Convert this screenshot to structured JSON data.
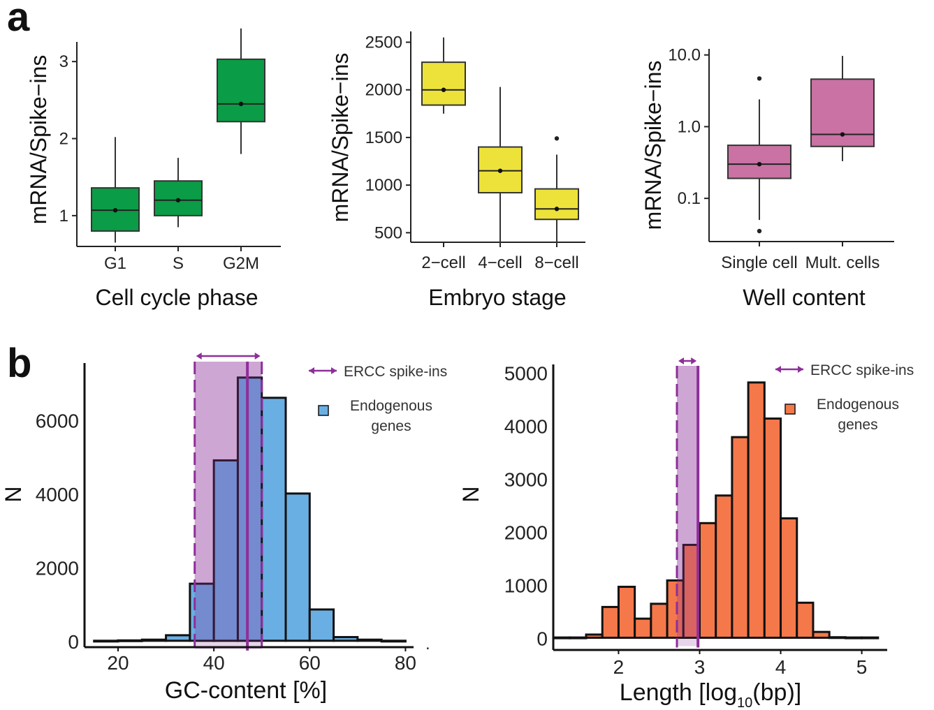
{
  "panels": {
    "a": "a",
    "b": "b"
  },
  "colors": {
    "green": "#0a9c46",
    "yellow": "#ede23a",
    "pink": "#c972a3",
    "blue": "#6aafe3",
    "orange": "#f5784a",
    "purple": "#8e2f99",
    "shade": "#e6d4ea"
  },
  "chart_data": [
    {
      "type": "box",
      "id": "a1",
      "ylabel": "mRNA/Spike−ins",
      "xlabel": "Cell cycle phase",
      "categories": [
        "G1",
        "S",
        "G2M"
      ],
      "ylim": [
        0.6,
        3.5
      ],
      "yticks": [
        1,
        2,
        3
      ],
      "yticklabels": [
        "1",
        "2",
        "3"
      ],
      "boxes": [
        {
          "min": 0.65,
          "q1": 0.8,
          "median": 1.07,
          "q3": 1.36,
          "max": 2.02,
          "mean": 1.07,
          "outliers": []
        },
        {
          "min": 0.85,
          "q1": 1.0,
          "median": 1.2,
          "q3": 1.45,
          "max": 1.75,
          "mean": 1.2,
          "outliers": []
        },
        {
          "min": 1.8,
          "q1": 2.22,
          "median": 2.45,
          "q3": 3.03,
          "max": 3.43,
          "mean": 2.45,
          "outliers": []
        }
      ]
    },
    {
      "type": "box",
      "id": "a2",
      "ylabel": "mRNA/Spike−ins",
      "xlabel": "Embryo stage",
      "categories": [
        "2−cell",
        "4−cell",
        "8−cell"
      ],
      "ylim": [
        400,
        2650
      ],
      "yticks": [
        500,
        1000,
        1500,
        2000,
        2500
      ],
      "yticklabels": [
        "500",
        "1000",
        "1500",
        "2000",
        "2500"
      ],
      "boxes": [
        {
          "min": 1750,
          "q1": 1840,
          "median": 2000,
          "q3": 2290,
          "max": 2550,
          "mean": 2000,
          "outliers": []
        },
        {
          "min": 380,
          "q1": 920,
          "median": 1150,
          "q3": 1400,
          "max": 2030,
          "mean": 1150,
          "outliers": []
        },
        {
          "min": 380,
          "q1": 640,
          "median": 750,
          "q3": 960,
          "max": 1320,
          "mean": 750,
          "outliers": [
            1490
          ]
        }
      ]
    },
    {
      "type": "box",
      "id": "a3",
      "ylabel": "mRNA/Spike−ins",
      "xlabel": "Well content",
      "categories": [
        "Single cell",
        "Mult. cells"
      ],
      "scale": "log",
      "ylim": [
        0.025,
        13
      ],
      "yticks": [
        0.1,
        1.0,
        10.0
      ],
      "yticklabels": [
        "0.1",
        "1.0",
        "10.0"
      ],
      "boxes": [
        {
          "min": 0.05,
          "q1": 0.19,
          "median": 0.3,
          "q3": 0.55,
          "max": 2.4,
          "mean": 0.3,
          "outliers": [
            0.035,
            4.7
          ]
        },
        {
          "min": 0.33,
          "q1": 0.53,
          "median": 0.78,
          "q3": 4.6,
          "max": 9.7,
          "mean": 0.78,
          "outliers": []
        }
      ]
    },
    {
      "type": "histogram",
      "id": "b1",
      "xlabel": "GC-content [%]",
      "ylabel": "N",
      "xlim": [
        13,
        83
      ],
      "ylim": [
        -250,
        7450
      ],
      "xticks": [
        20,
        40,
        60,
        80
      ],
      "xticklabels": [
        "20",
        "40",
        "60",
        "80"
      ],
      "yticks": [
        0,
        2000,
        4000,
        6000
      ],
      "yticklabels": [
        "0",
        "2000",
        "4000",
        "6000"
      ],
      "bin_width": 5,
      "bin_starts": [
        15,
        20,
        25,
        30,
        35,
        40,
        45,
        50,
        55,
        60,
        65,
        70,
        75
      ],
      "counts": [
        0,
        10,
        30,
        150,
        1550,
        4900,
        7150,
        6600,
        4000,
        850,
        100,
        30,
        0
      ],
      "ercc_range": [
        36,
        50
      ],
      "ercc_mean": 47,
      "legend": {
        "arrow_label": "ERCC spike-ins",
        "bar_label_lines": [
          "Endogenous",
          "genes"
        ]
      }
    },
    {
      "type": "histogram",
      "id": "b2",
      "xlabel_main": "Length [log",
      "xlabel_sub": "10",
      "xlabel_tail": "(bp)]",
      "ylabel": "N",
      "xlim": [
        1.1,
        5.4
      ],
      "ylim": [
        -230,
        5150
      ],
      "xticks": [
        2,
        3,
        4,
        5
      ],
      "xticklabels": [
        "2",
        "3",
        "4",
        "5"
      ],
      "yticks": [
        0,
        1000,
        2000,
        3000,
        4000,
        5000
      ],
      "yticklabels": [
        "0",
        "1000",
        "2000",
        "3000",
        "4000",
        "5000"
      ],
      "bin_width": 0.2,
      "bin_starts": [
        1.2,
        1.4,
        1.6,
        1.8,
        2.0,
        2.2,
        2.4,
        2.6,
        2.8,
        3.0,
        3.2,
        3.4,
        3.6,
        3.8,
        4.0,
        4.2,
        4.4,
        4.6,
        4.8,
        5.0
      ],
      "counts": [
        5,
        5,
        60,
        580,
        960,
        360,
        640,
        1080,
        1750,
        2160,
        2680,
        3780,
        4810,
        4130,
        2250,
        660,
        110,
        10,
        5,
        5
      ],
      "ercc_range": [
        2.72,
        2.98
      ],
      "ercc_mean": 2.98,
      "legend": {
        "arrow_label": "ERCC spike-ins",
        "bar_label_lines": [
          "Endogenous",
          "genes"
        ]
      }
    }
  ]
}
